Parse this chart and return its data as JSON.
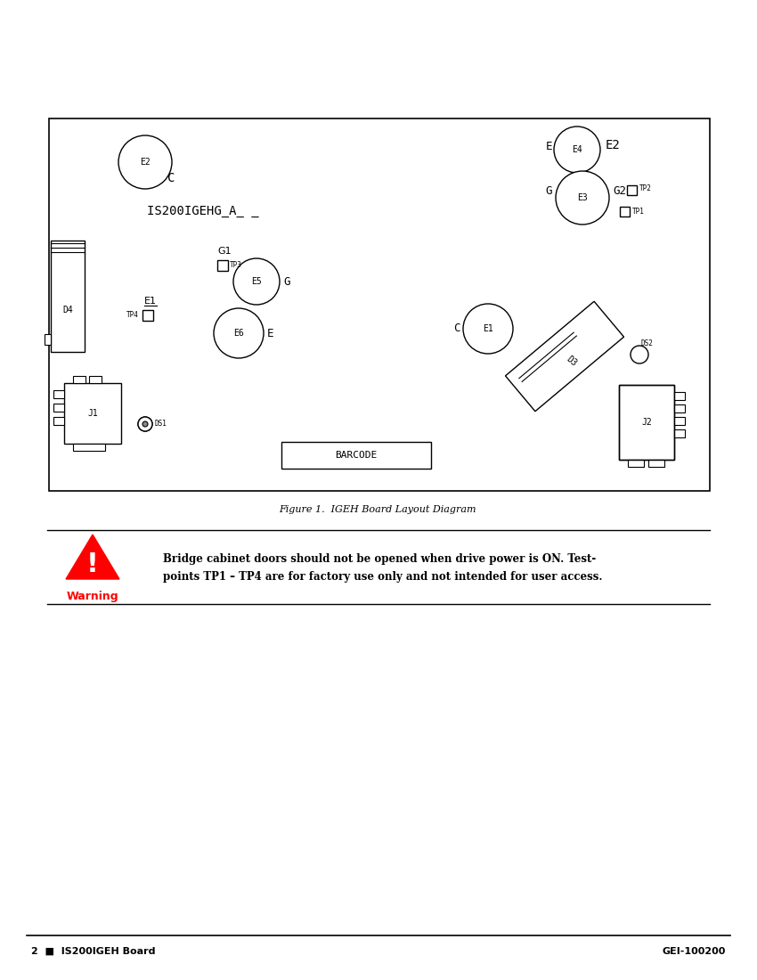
{
  "bg_color": "#ffffff",
  "figure_caption": "Figure 1.  IGEH Board Layout Diagram",
  "footer_left": "2  ■  IS200IGEH Board",
  "footer_right": "GEI-100200",
  "board_label": "IS200IGEHG_A_ _",
  "warning_text_line1": "Bridge cabinet doors should not be opened when drive power is ON. Test-",
  "warning_text_line2": "points TP1 – TP4 are for factory use only and not intended for user access."
}
